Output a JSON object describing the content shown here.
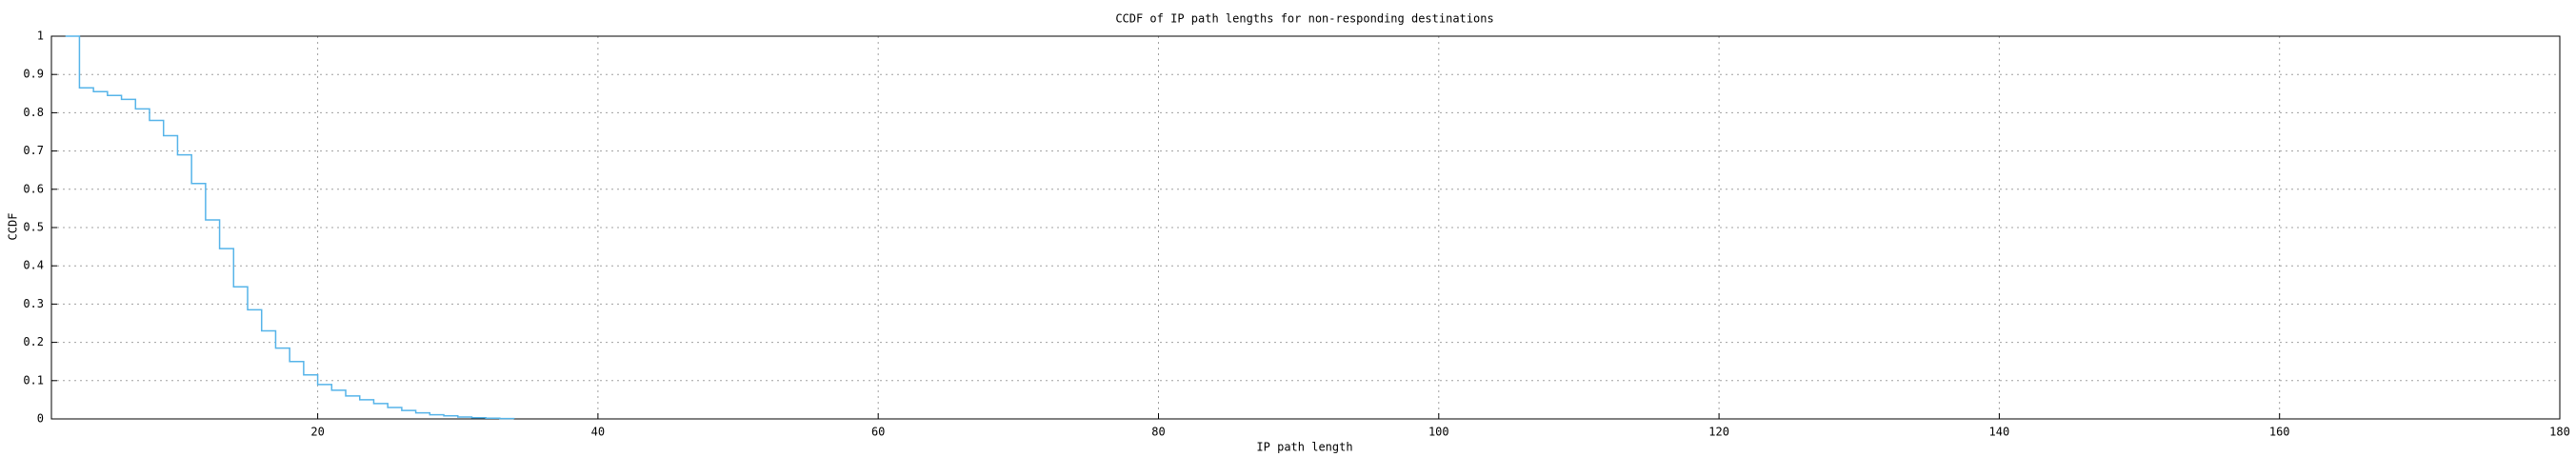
{
  "chart_data": {
    "type": "step",
    "title": "CCDF of IP path lengths for non-responding destinations",
    "x_label": "IP path length",
    "y_label": "CCDF",
    "x": [
      2,
      3,
      4,
      5,
      6,
      7,
      8,
      9,
      10,
      11,
      12,
      13,
      14,
      15,
      16,
      17,
      18,
      19,
      20,
      21,
      22,
      23,
      24,
      25,
      26,
      27,
      28,
      29,
      30,
      31,
      32,
      33,
      34
    ],
    "values": [
      1,
      0.865,
      0.855,
      0.845,
      0.835,
      0.81,
      0.78,
      0.74,
      0.69,
      0.615,
      0.52,
      0.445,
      0.345,
      0.285,
      0.23,
      0.185,
      0.15,
      0.115,
      0.09,
      0.075,
      0.06,
      0.05,
      0.04,
      0.03,
      0.022,
      0.016,
      0.011,
      0.008,
      0.005,
      0.003,
      0.002,
      0.001,
      0
    ],
    "color": "#56b4e9",
    "xlim": [
      1,
      180
    ],
    "xticks": [
      20,
      40,
      60,
      80,
      100,
      120,
      140,
      160,
      180
    ],
    "ylim": [
      0,
      1
    ],
    "yticks": [
      0,
      0.1,
      0.2,
      0.3,
      0.4,
      0.5,
      0.6,
      0.7,
      0.8,
      0.9,
      1
    ],
    "grid": true
  }
}
